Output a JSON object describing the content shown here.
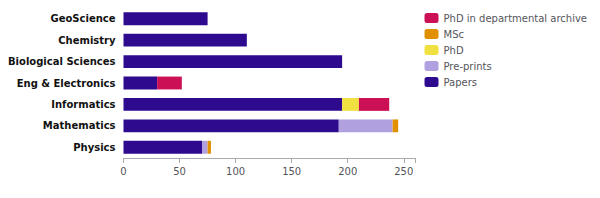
{
  "chart_data": {
    "type": "bar",
    "orientation": "horizontal",
    "stacked": true,
    "categories": [
      "GeoScience",
      "Chemistry",
      "Biological Sciences",
      "Eng & Electronics",
      "Informatics",
      "Mathematics",
      "Physics"
    ],
    "series": [
      {
        "name": "Papers",
        "color": "#2d0a8e",
        "values": [
          75,
          110,
          195,
          30,
          195,
          192,
          70
        ]
      },
      {
        "name": "Pre-prints",
        "color": "#b0a0e0",
        "values": [
          0,
          0,
          0,
          0,
          0,
          48,
          5
        ]
      },
      {
        "name": "PhD",
        "color": "#f0e040",
        "values": [
          0,
          0,
          0,
          0,
          15,
          0,
          0
        ]
      },
      {
        "name": "MSc",
        "color": "#e09000",
        "values": [
          0,
          0,
          0,
          0,
          0,
          5,
          3
        ]
      },
      {
        "name": "PhD in departmental archive",
        "color": "#cc1055",
        "values": [
          0,
          0,
          0,
          22,
          27,
          0,
          0
        ]
      }
    ],
    "xlim": [
      0,
      260
    ],
    "xticks": [
      0,
      50,
      100,
      150,
      200,
      250
    ],
    "grid": false,
    "legend": "upper right"
  }
}
